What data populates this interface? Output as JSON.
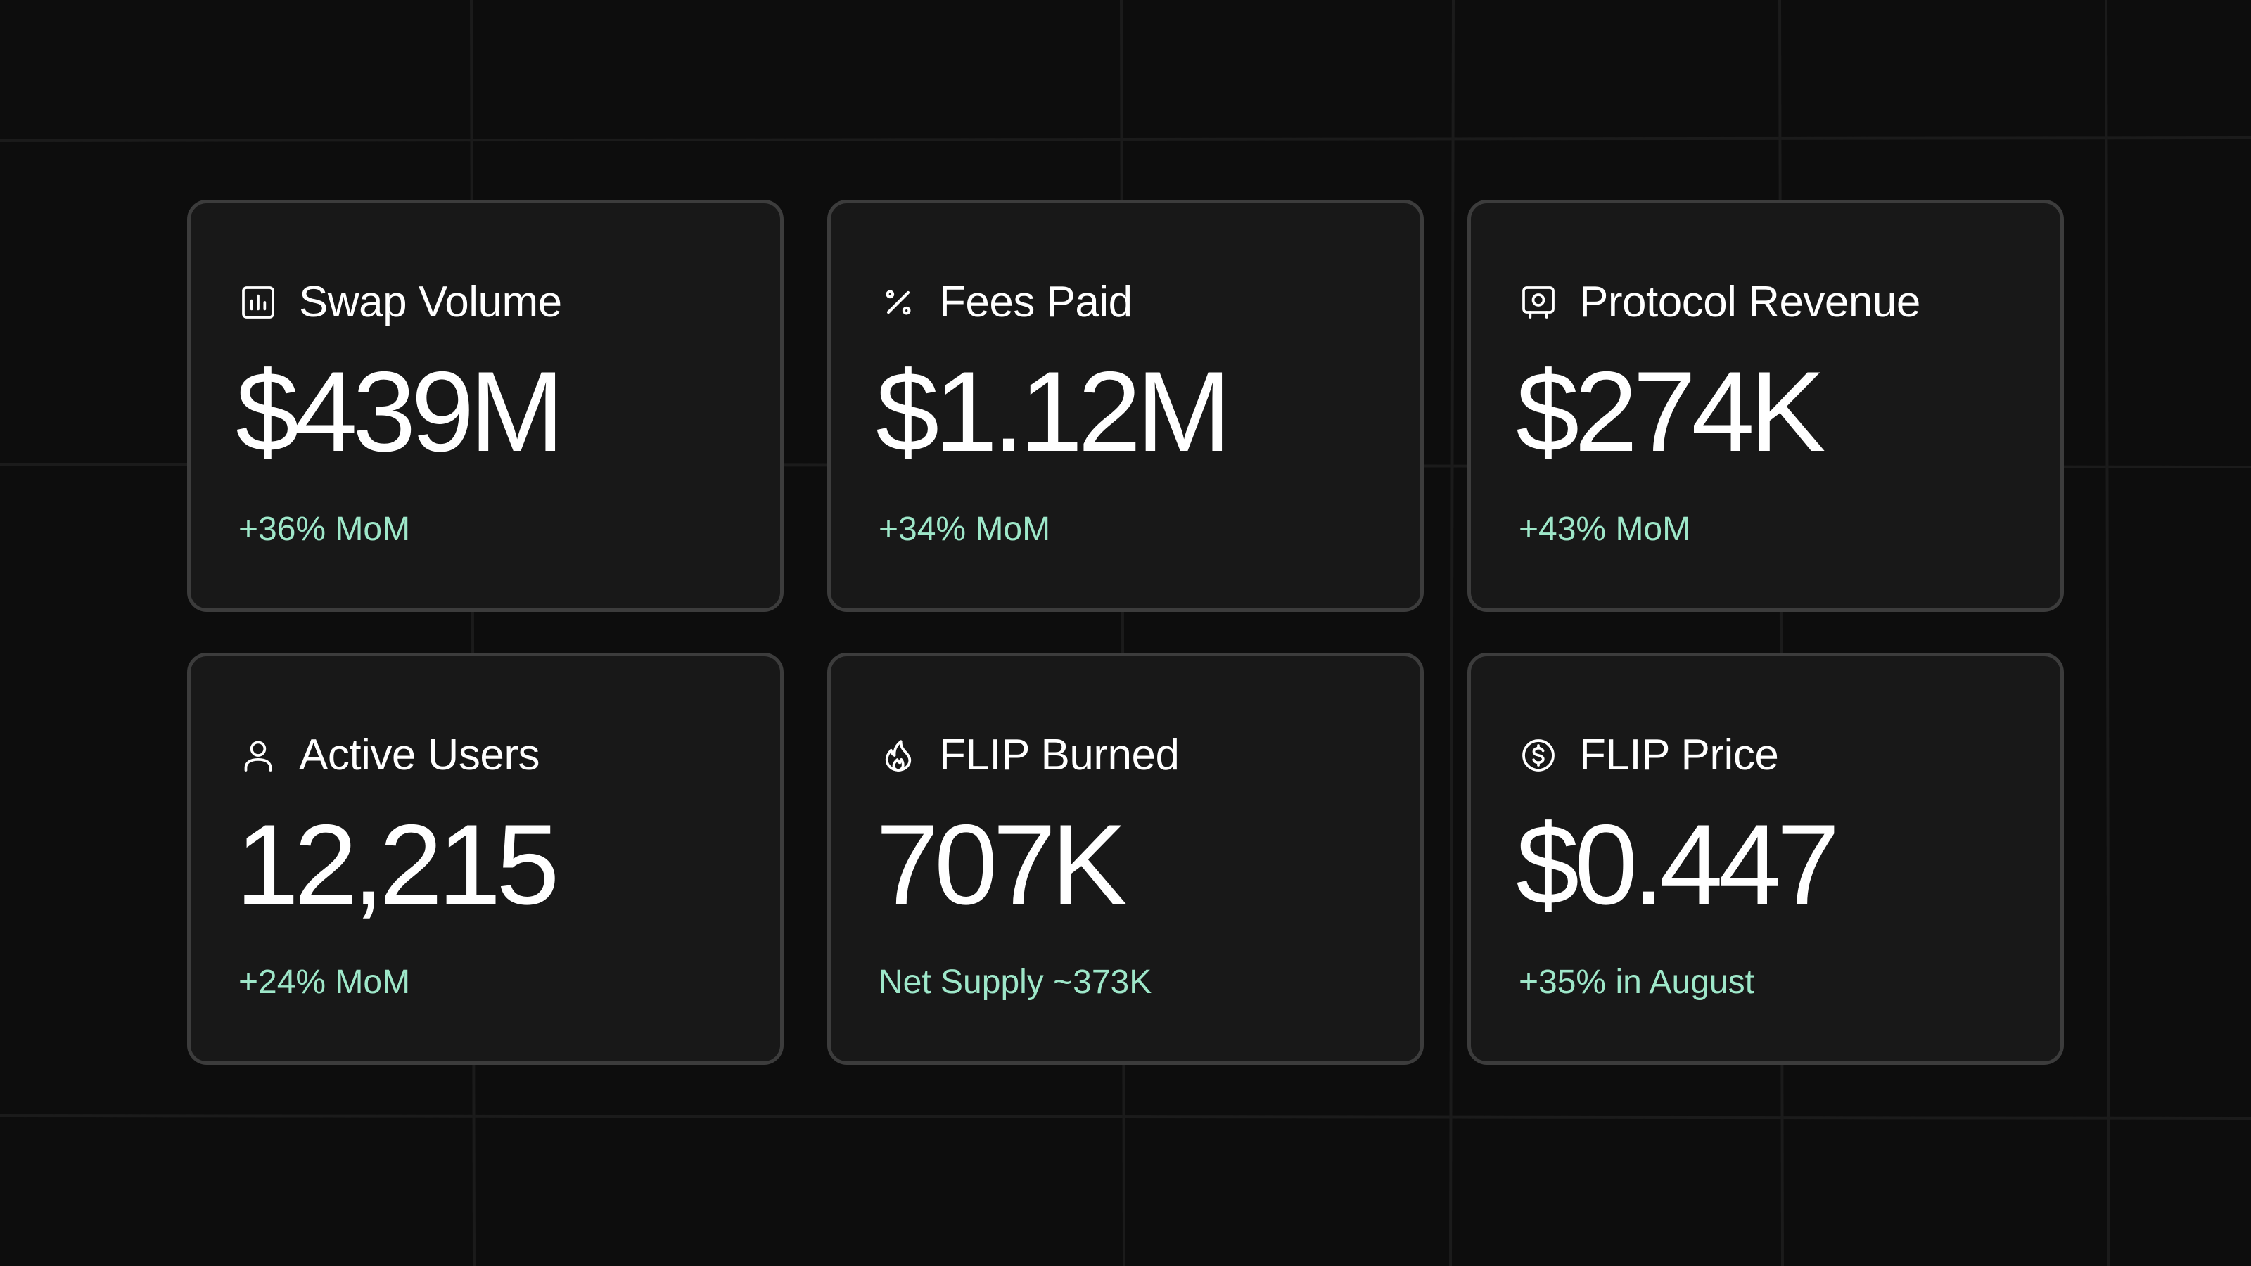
{
  "colors": {
    "background": "#0d0d0d",
    "card_background": "#181818",
    "card_border": "#3c3c3c",
    "text": "#ffffff",
    "accent_green": "#9ee7c9"
  },
  "cards": [
    {
      "icon": "bar-chart-icon",
      "label": "Swap Volume",
      "value": "$439M",
      "change": "+36% MoM"
    },
    {
      "icon": "percent-icon",
      "label": "Fees Paid",
      "value": "$1.12M",
      "change": "+34% MoM"
    },
    {
      "icon": "safe-icon",
      "label": "Protocol Revenue",
      "value": "$274K",
      "change": "+43% MoM"
    },
    {
      "icon": "user-icon",
      "label": "Active Users",
      "value": "12,215",
      "change": "+24% MoM"
    },
    {
      "icon": "flame-icon",
      "label": "FLIP Burned",
      "value": "707K",
      "change": "Net Supply ~373K"
    },
    {
      "icon": "dollar-coin-icon",
      "label": "FLIP Price",
      "value": "$0.447",
      "change": "+35% in August"
    }
  ]
}
